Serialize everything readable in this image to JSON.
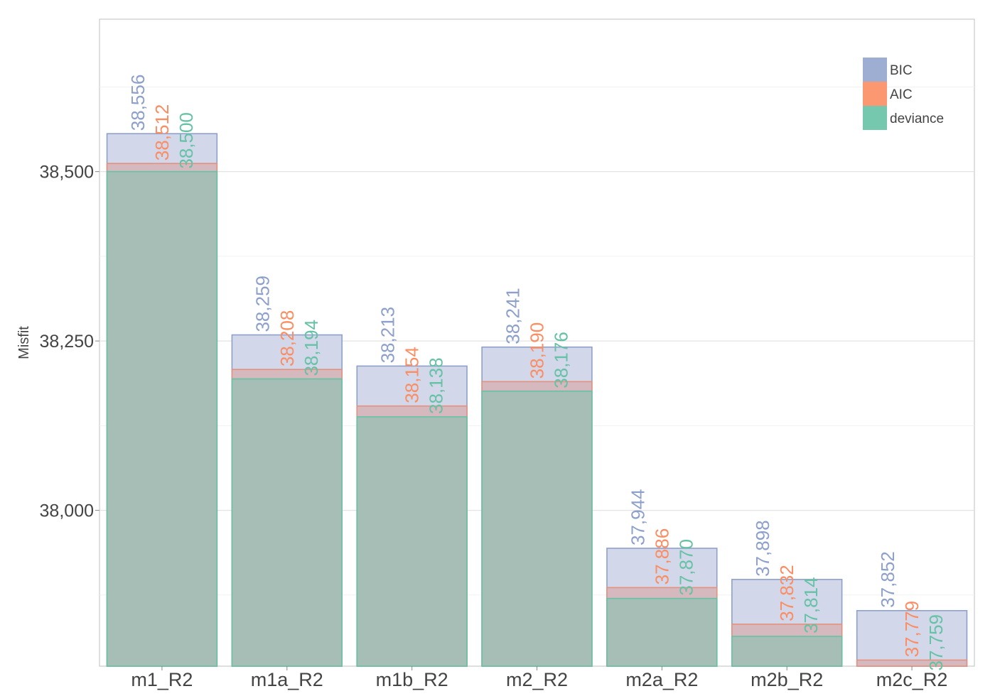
{
  "chart_data": {
    "type": "bar",
    "layout": "overlaid",
    "categories": [
      "m1_R2",
      "m1a_R2",
      "m1b_R2",
      "m2_R2",
      "m2a_R2",
      "m2b_R2",
      "m2c_R2"
    ],
    "series": [
      {
        "name": "BIC",
        "values": [
          38556,
          38259,
          38213,
          38241,
          37944,
          37898,
          37852
        ],
        "labels": [
          "38,556",
          "38,259",
          "38,213",
          "38,241",
          "37,944",
          "37,898",
          "37,852"
        ]
      },
      {
        "name": "AIC",
        "values": [
          38512,
          38208,
          38154,
          38190,
          37886,
          37832,
          37779
        ],
        "labels": [
          "38,512",
          "38,208",
          "38,154",
          "38,190",
          "37,886",
          "37,832",
          "37,779"
        ]
      },
      {
        "name": "deviance",
        "values": [
          38500,
          38194,
          38138,
          38176,
          37870,
          37814,
          37759
        ],
        "labels": [
          "38,500",
          "38,194",
          "38,138",
          "38,176",
          "37,870",
          "37,814",
          "37,759"
        ]
      }
    ],
    "ylabel": "Misfit",
    "xlabel": "",
    "ylim": [
      37770,
      38725
    ],
    "yticks": [
      38000,
      38250,
      38500
    ],
    "ytick_labels": [
      "38,000",
      "38,250",
      "38,500"
    ],
    "grid": true,
    "legend_position": "top-right",
    "colors": {
      "BIC": "#8DA0CB",
      "AIC": "#FC8D62",
      "deviance": "#66C2A5"
    }
  }
}
